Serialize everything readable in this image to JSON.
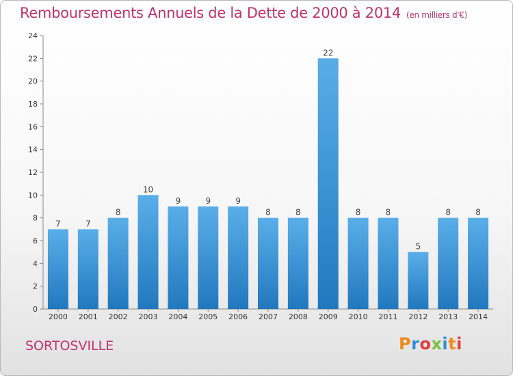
{
  "title": "Remboursements Annuels de la Dette de 2000 à 2014",
  "subtitle": "(en milliers d'€)",
  "commune": "SORTOSVILLE",
  "logo": {
    "letters": [
      "P",
      "r",
      "o",
      "x",
      "i",
      "t",
      "i"
    ],
    "colors": [
      "#f08a1c",
      "#2a8fd6",
      "#e23b3b",
      "#7ac143",
      "#2a8fd6",
      "#f08a1c",
      "#e23b3b"
    ]
  },
  "colors": {
    "bar_light": "#5aaee8",
    "bar_dark": "#2178be",
    "title": "#c0336b"
  },
  "chart_data": {
    "type": "bar",
    "categories": [
      "2000",
      "2001",
      "2002",
      "2003",
      "2004",
      "2005",
      "2006",
      "2007",
      "2008",
      "2009",
      "2010",
      "2011",
      "2012",
      "2013",
      "2014"
    ],
    "values": [
      7,
      7,
      8,
      10,
      9,
      9,
      9,
      8,
      8,
      22,
      8,
      8,
      5,
      8,
      8
    ],
    "title": "Remboursements Annuels de la Dette de 2000 à 2014",
    "subtitle": "(en milliers d'€)",
    "xlabel": "",
    "ylabel": "",
    "ylim": [
      0,
      24
    ],
    "yticks": [
      0,
      2,
      4,
      6,
      8,
      10,
      12,
      14,
      16,
      18,
      20,
      22,
      24
    ],
    "grid": false,
    "legend": "none"
  }
}
